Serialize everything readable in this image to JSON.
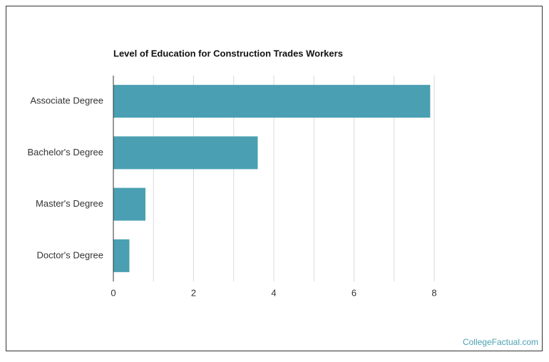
{
  "chart_data": {
    "type": "bar",
    "orientation": "horizontal",
    "title": "Level of Education for Construction Trades Workers",
    "categories": [
      "Associate Degree",
      "Bachelor's Degree",
      "Master's Degree",
      "Doctor's Degree"
    ],
    "values": [
      7.9,
      3.6,
      0.8,
      0.4
    ],
    "color": "#4aa0b2",
    "xlim": [
      0,
      8
    ],
    "xticks": [
      0,
      2,
      4,
      6,
      8
    ],
    "minor_xticks": [
      1,
      3,
      5,
      7
    ],
    "grid": true
  },
  "footer": "CollegeFactual.com"
}
